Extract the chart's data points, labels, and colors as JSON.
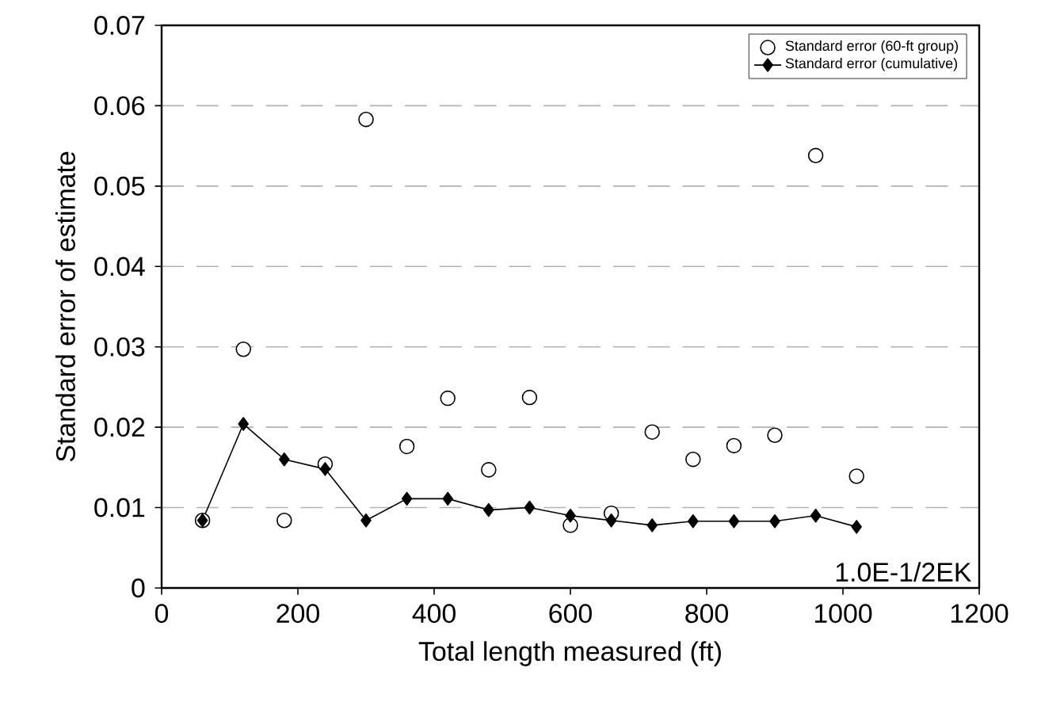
{
  "chart_data": {
    "type": "scatter",
    "xlabel": "Total length measured (ft)",
    "ylabel": "Standard error of estimate",
    "x": [
      60,
      120,
      180,
      240,
      300,
      360,
      420,
      480,
      540,
      600,
      660,
      720,
      780,
      840,
      900,
      960,
      1020
    ],
    "series": [
      {
        "name": "Standard error (60-ft group)",
        "type": "scatter",
        "marker": "circle",
        "color": "#ffffff",
        "values": [
          0.0084,
          0.0297,
          0.0084,
          0.0154,
          0.0583,
          0.0176,
          0.0236,
          0.0147,
          0.0237,
          0.0078,
          0.0093,
          0.0194,
          0.016,
          0.0177,
          0.019,
          0.0538,
          0.0139
        ]
      },
      {
        "name": "Standard error (cumulative)",
        "type": "line",
        "marker": "diamond",
        "line_style": "solid",
        "color": "#000000",
        "values": [
          0.0084,
          0.0204,
          0.016,
          0.0148,
          0.0084,
          0.0111,
          0.0111,
          0.0097,
          0.01,
          0.009,
          0.0084,
          0.0078,
          0.0083,
          0.0083,
          0.0083,
          0.009,
          0.0076
        ]
      }
    ],
    "xlim": [
      0,
      1200
    ],
    "xticks": [
      0,
      200,
      400,
      600,
      800,
      1000,
      1200
    ],
    "ylim": [
      0,
      0.07
    ],
    "yticks": [
      0,
      0.01,
      0.02,
      0.03,
      0.04,
      0.05,
      0.06,
      0.07
    ],
    "grid": "y",
    "legend": "top right",
    "annotations": [
      "1.0E-1/2EK"
    ]
  }
}
